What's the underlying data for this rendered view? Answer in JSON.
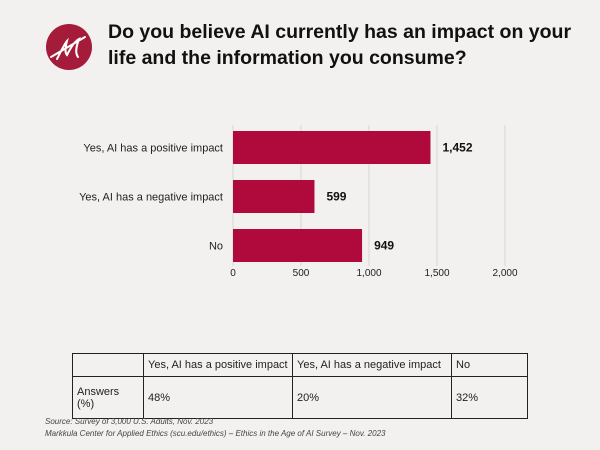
{
  "title": "Do you believe AI currently has an impact on your life and the information you consume?",
  "brand_color": "#a51c3a",
  "logo": {
    "letter": "M"
  },
  "chart_data": {
    "type": "bar",
    "orientation": "horizontal",
    "categories": [
      "Yes, AI has a positive impact",
      "Yes, AI has a negative impact",
      "No"
    ],
    "values": [
      1452,
      599,
      949
    ],
    "value_labels": [
      "1,452",
      "599",
      "949"
    ],
    "xlim": [
      0,
      2000
    ],
    "xticks": [
      0,
      500,
      1000,
      1500,
      2000
    ],
    "xtick_labels": [
      "0",
      "500",
      "1,000",
      "1,500",
      "2,000"
    ],
    "grid": true,
    "bar_color": "#b00a3c"
  },
  "table": {
    "headers": [
      "",
      "Yes, AI has a positive impact",
      "Yes, AI has a negative impact",
      "No"
    ],
    "row": [
      "Answers (%)",
      "48%",
      "20%",
      "32%"
    ]
  },
  "footer": {
    "source": "Source: Survey of 3,000 U.S. Adults, Nov. 2023",
    "credit": "Markkula Center for Applied Ethics  (scu.edu/ethics) –  Ethics in the Age of AI Survey – Nov. 2023"
  }
}
